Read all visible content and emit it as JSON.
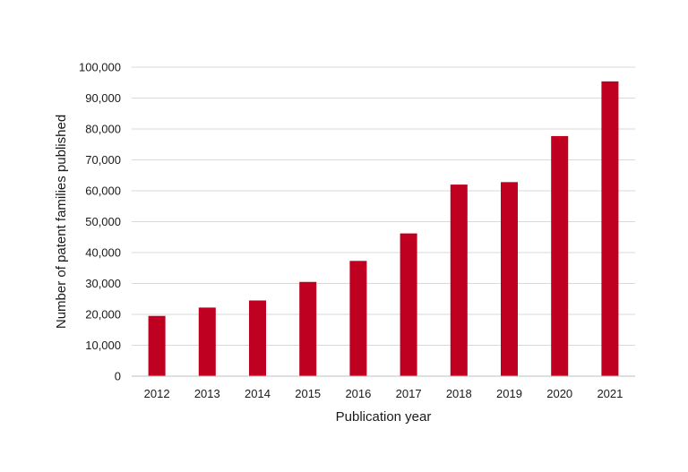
{
  "chart_data": {
    "type": "bar",
    "title": "",
    "xlabel": "Publication year",
    "ylabel": "Number of patent families published",
    "categories": [
      "2012",
      "2013",
      "2014",
      "2015",
      "2016",
      "2017",
      "2018",
      "2019",
      "2020",
      "2021"
    ],
    "values": [
      19500,
      22200,
      24500,
      30500,
      37300,
      46200,
      62000,
      62800,
      77700,
      95400
    ],
    "ylim": [
      0,
      100000
    ],
    "yticks": [
      "0",
      "10,000",
      "20,000",
      "30,000",
      "40,000",
      "50,000",
      "60,000",
      "70,000",
      "80,000",
      "90,000",
      "100,000"
    ],
    "ytick_values": [
      0,
      10000,
      20000,
      30000,
      40000,
      50000,
      60000,
      70000,
      80000,
      90000,
      100000
    ],
    "grid": true,
    "legend": "none",
    "colors": {
      "bar": "#c00020",
      "grid": "#d9d9d9",
      "axis": "#bfbfbf"
    }
  }
}
